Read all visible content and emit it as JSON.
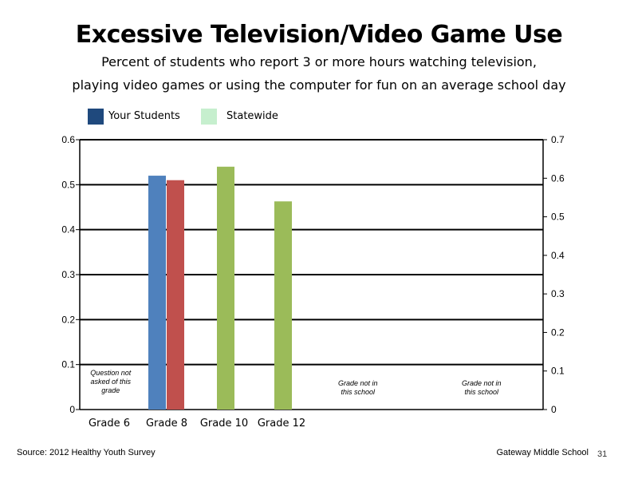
{
  "header": {
    "title": "Excessive Television/Video Game Use",
    "subtitle_line1": "Percent of students who report 3 or more hours watching television,",
    "subtitle_line2": "playing video games or using the computer for fun on an average school day"
  },
  "legend": [
    {
      "label": "Your Students",
      "color": "#1f497d"
    },
    {
      "label": "Statewide",
      "color": "#c6efce"
    }
  ],
  "colors": {
    "your_students_bar": "#4f81bd",
    "statewide_bar": "#c0504d",
    "secondary_bar": "#9bbb59"
  },
  "chart_data": {
    "type": "bar",
    "categories": [
      "Grade 6",
      "Grade 8",
      "Grade 10",
      "Grade 12"
    ],
    "series": [
      {
        "name": "Your Students",
        "axis": "left",
        "color": "#4f81bd",
        "values": [
          null,
          0.52,
          null,
          null
        ]
      },
      {
        "name": "Statewide",
        "axis": "left",
        "color": "#c0504d",
        "values": [
          null,
          0.51,
          null,
          null
        ]
      },
      {
        "axis": "right",
        "color": "#9bbb59",
        "values": [
          null,
          null,
          0.63,
          0.54
        ]
      }
    ],
    "ylim": [
      0,
      0.6
    ],
    "y_ticks": [
      "0",
      "0.1",
      "0.2",
      "0.3",
      "0.4",
      "0.5",
      "0.6"
    ],
    "y2lim": [
      0,
      0.7
    ],
    "y2_ticks": [
      "0",
      "0.1",
      "0.2",
      "0.3",
      "0.4",
      "0.5",
      "0.6",
      "0.7"
    ],
    "grid": true,
    "legend_position": "top-left",
    "annotations": [
      {
        "lines": [
          "Question not",
          "asked of this",
          "grade"
        ],
        "slot": 0
      },
      {
        "lines": [
          "Grade not in",
          "this school"
        ],
        "slot": 4
      },
      {
        "lines": [
          "Grade not in",
          "this school"
        ],
        "slot": 6
      }
    ]
  },
  "footer": {
    "source": "Source: 2012 Healthy Youth Survey",
    "school": "Gateway Middle School",
    "page_number": "31"
  }
}
